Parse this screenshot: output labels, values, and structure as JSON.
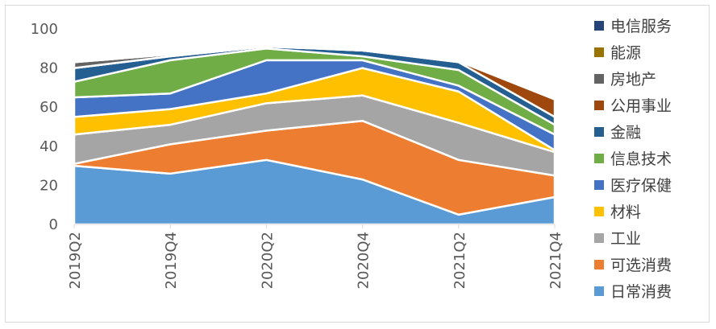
{
  "chart_data": {
    "type": "area",
    "stacked": true,
    "categories": [
      "2019Q2",
      "2019Q4",
      "2020Q2",
      "2020Q4",
      "2021Q2",
      "2021Q4"
    ],
    "ylim": [
      0,
      100
    ],
    "yticks": [
      0,
      20,
      40,
      60,
      80,
      100
    ],
    "grid": false,
    "legend_position": "right",
    "series": [
      {
        "name": "日常消费",
        "color": "#5B9BD5",
        "values": [
          30,
          26,
          33,
          23,
          5,
          14
        ]
      },
      {
        "name": "可选消费",
        "color": "#ED7D31",
        "values": [
          1,
          15,
          15,
          30,
          28,
          11
        ]
      },
      {
        "name": "工业",
        "color": "#A5A5A5",
        "values": [
          15,
          10,
          14,
          13,
          19,
          12
        ]
      },
      {
        "name": "材料",
        "color": "#FFC000",
        "values": [
          9,
          8,
          5,
          14,
          16,
          1
        ]
      },
      {
        "name": "医疗保健",
        "color": "#4472C4",
        "values": [
          10,
          8,
          17,
          4,
          3,
          8
        ]
      },
      {
        "name": "信息技术",
        "color": "#70AD47",
        "values": [
          8,
          17,
          6,
          2,
          8,
          5
        ]
      },
      {
        "name": "金融",
        "color": "#255E91",
        "values": [
          7,
          2,
          1,
          3,
          4,
          4
        ]
      },
      {
        "name": "公用事业",
        "color": "#9E480E",
        "values": [
          0,
          0,
          0,
          0,
          0.5,
          9
        ]
      },
      {
        "name": "房地产",
        "color": "#636363",
        "values": [
          3,
          1,
          0.5,
          0,
          0.5,
          0
        ]
      },
      {
        "name": "能源",
        "color": "#997300",
        "values": [
          0,
          0,
          0,
          0,
          0,
          0
        ]
      },
      {
        "name": "电信服务",
        "color": "#264478",
        "values": [
          0,
          0,
          0,
          0,
          0,
          0
        ]
      }
    ]
  }
}
